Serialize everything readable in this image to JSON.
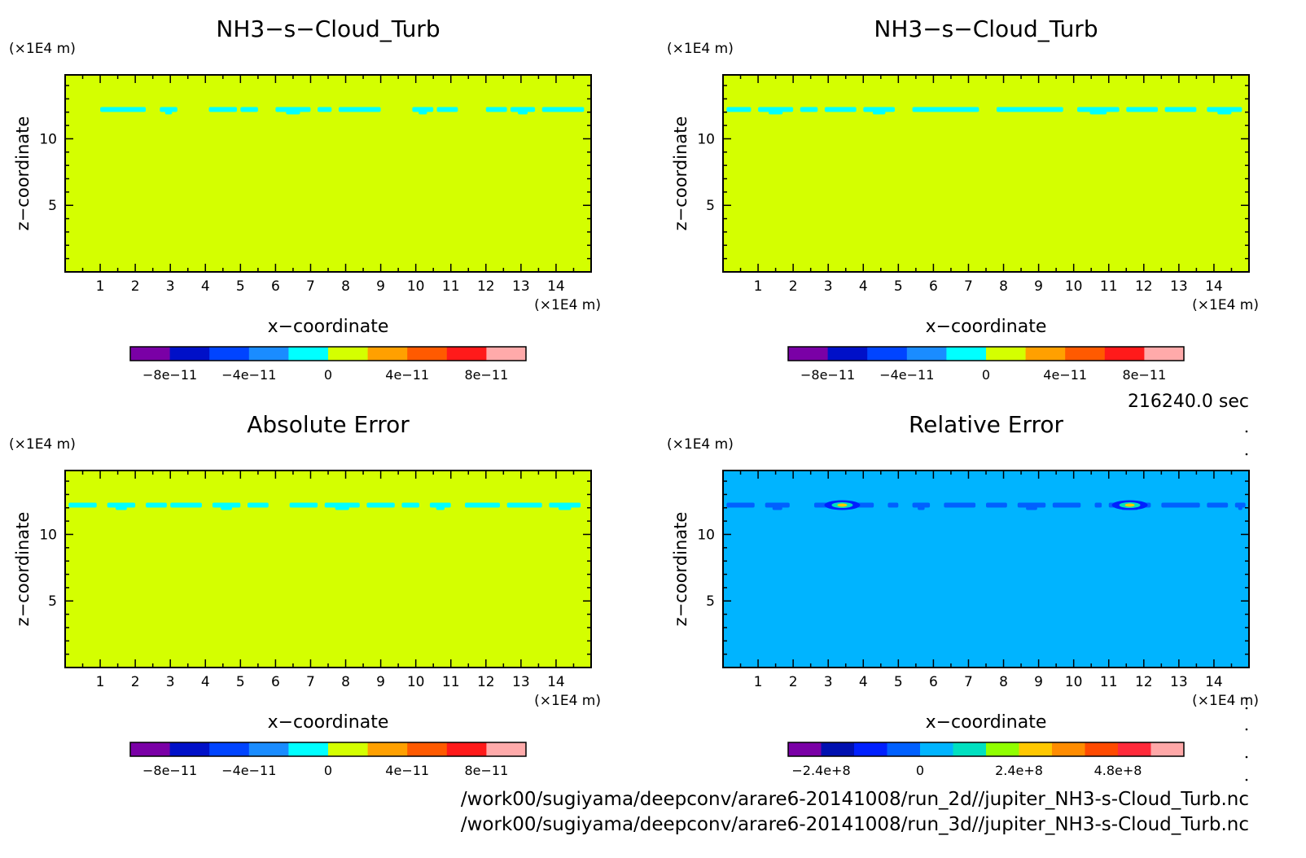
{
  "time_label": "216240.0 sec",
  "files": [
    "/work00/sugiyama/deepconv/arare6-20141008/run_2d//jupiter_NH3-s-Cloud_Turb.nc",
    "/work00/sugiyama/deepconv/arare6-20141008/run_3d//jupiter_NH3-s-Cloud_Turb.nc"
  ],
  "colors": {
    "palette_main": [
      "#7a00a6",
      "#0010c8",
      "#0044ff",
      "#1a8cff",
      "#00ffff",
      "#d4ff00",
      "#ffa000",
      "#ff5a00",
      "#ff1a1a",
      "#ffaaaa"
    ],
    "palette_rel": [
      "#7a00a6",
      "#0010b0",
      "#0020ff",
      "#0060ff",
      "#00b4ff",
      "#00e0c0",
      "#90ff00",
      "#ffc800",
      "#ff8c00",
      "#ff4a00",
      "#ff2a3a",
      "#ffa8a8"
    ]
  },
  "chart_data": [
    {
      "type": "heatmap",
      "title": "NH3−s−Cloud_Turb",
      "xlabel": "x−coordinate",
      "ylabel": "z−coordinate",
      "x_unit": "(×1E4 m)",
      "y_unit": "(×1E4 m)",
      "xlim": [
        0,
        15
      ],
      "ylim": [
        0,
        14.8
      ],
      "x_ticks": [
        1,
        2,
        3,
        4,
        5,
        6,
        7,
        8,
        9,
        10,
        11,
        12,
        13,
        14
      ],
      "y_ticks": [
        5,
        10
      ],
      "background_value_color": "#d4ff00",
      "band_color": "#00ffff",
      "band_z": 12.2,
      "band_segments": [
        [
          1.0,
          2.3
        ],
        [
          2.7,
          3.2
        ],
        [
          4.1,
          4.9
        ],
        [
          5.0,
          5.5
        ],
        [
          6.0,
          7.0
        ],
        [
          7.2,
          7.6
        ],
        [
          7.8,
          9.0
        ],
        [
          9.9,
          10.5
        ],
        [
          10.6,
          11.2
        ],
        [
          12.0,
          12.6
        ],
        [
          12.7,
          13.4
        ],
        [
          13.6,
          14.8
        ]
      ],
      "colorbar": {
        "tick_labels": [
          "−8e−11",
          "−4e−11",
          "0",
          "4e−11",
          "8e−11"
        ],
        "tick_values": [
          -8e-11,
          -4e-11,
          0,
          4e-11,
          8e-11
        ],
        "range": [
          -1e-10,
          1e-10
        ]
      }
    },
    {
      "type": "heatmap",
      "title": "NH3−s−Cloud_Turb",
      "xlabel": "x−coordinate",
      "ylabel": "z−coordinate",
      "x_unit": "(×1E4 m)",
      "y_unit": "(×1E4 m)",
      "xlim": [
        0,
        15
      ],
      "ylim": [
        0,
        14.8
      ],
      "x_ticks": [
        1,
        2,
        3,
        4,
        5,
        6,
        7,
        8,
        9,
        10,
        11,
        12,
        13,
        14
      ],
      "y_ticks": [
        5,
        10
      ],
      "background_value_color": "#d4ff00",
      "band_color": "#00ffff",
      "band_z": 12.2,
      "band_segments": [
        [
          0.1,
          0.8
        ],
        [
          1.0,
          2.0
        ],
        [
          2.2,
          2.7
        ],
        [
          2.9,
          3.8
        ],
        [
          4.0,
          4.9
        ],
        [
          5.4,
          7.3
        ],
        [
          7.8,
          9.7
        ],
        [
          10.1,
          11.3
        ],
        [
          11.5,
          12.4
        ],
        [
          12.6,
          13.5
        ],
        [
          13.8,
          14.8
        ]
      ],
      "colorbar": {
        "tick_labels": [
          "−8e−11",
          "−4e−11",
          "0",
          "4e−11",
          "8e−11"
        ],
        "tick_values": [
          -8e-11,
          -4e-11,
          0,
          4e-11,
          8e-11
        ],
        "range": [
          -1e-10,
          1e-10
        ]
      }
    },
    {
      "type": "heatmap",
      "title": "Absolute Error",
      "xlabel": "x−coordinate",
      "ylabel": "z−coordinate",
      "x_unit": "(×1E4 m)",
      "y_unit": "(×1E4 m)",
      "xlim": [
        0,
        15
      ],
      "ylim": [
        0,
        14.8
      ],
      "x_ticks": [
        1,
        2,
        3,
        4,
        5,
        6,
        7,
        8,
        9,
        10,
        11,
        12,
        13,
        14
      ],
      "y_ticks": [
        5,
        10
      ],
      "background_value_color": "#d4ff00",
      "band_color": "#00ffff",
      "band_z": 12.2,
      "band_segments": [
        [
          0.1,
          0.9
        ],
        [
          1.2,
          2.0
        ],
        [
          2.3,
          2.9
        ],
        [
          3.0,
          3.9
        ],
        [
          4.2,
          5.0
        ],
        [
          5.2,
          5.8
        ],
        [
          6.4,
          7.2
        ],
        [
          7.4,
          8.4
        ],
        [
          8.6,
          9.4
        ],
        [
          9.6,
          10.1
        ],
        [
          10.4,
          11.0
        ],
        [
          11.4,
          12.4
        ],
        [
          12.6,
          13.6
        ],
        [
          13.8,
          14.7
        ]
      ],
      "colorbar": {
        "tick_labels": [
          "−8e−11",
          "−4e−11",
          "0",
          "4e−11",
          "8e−11"
        ],
        "tick_values": [
          -8e-11,
          -4e-11,
          0,
          4e-11,
          8e-11
        ],
        "range": [
          -1e-10,
          1e-10
        ]
      }
    },
    {
      "type": "heatmap",
      "title": "Relative Error",
      "xlabel": "x−coordinate",
      "ylabel": "z−coordinate",
      "x_unit": "(×1E4 m)",
      "y_unit": "(×1E4 m)",
      "xlim": [
        0,
        15
      ],
      "ylim": [
        0,
        14.8
      ],
      "x_ticks": [
        1,
        2,
        3,
        4,
        5,
        6,
        7,
        8,
        9,
        10,
        11,
        12,
        13,
        14
      ],
      "y_ticks": [
        5,
        10
      ],
      "background_value_color": "#00b4ff",
      "band_color": "#0060ff",
      "band_z": 12.2,
      "band_segments": [
        [
          0.1,
          0.9
        ],
        [
          1.2,
          1.9
        ],
        [
          2.6,
          4.3
        ],
        [
          4.7,
          5.0
        ],
        [
          5.4,
          5.9
        ],
        [
          6.3,
          7.2
        ],
        [
          7.5,
          8.1
        ],
        [
          8.4,
          9.2
        ],
        [
          9.4,
          10.2
        ],
        [
          10.6,
          10.8
        ],
        [
          11.0,
          12.2
        ],
        [
          12.5,
          13.6
        ],
        [
          13.8,
          14.4
        ],
        [
          14.6,
          14.9
        ]
      ],
      "hotspots": [
        [
          3.4,
          12.2
        ],
        [
          11.6,
          12.2
        ]
      ],
      "colorbar": {
        "tick_labels": [
          "−2.4e+8",
          "0",
          "2.4e+8",
          "4.8e+8"
        ],
        "tick_values": [
          -240000000.0,
          0,
          240000000.0,
          480000000.0
        ],
        "range": [
          -320000000.0,
          640000000.0
        ]
      }
    }
  ]
}
